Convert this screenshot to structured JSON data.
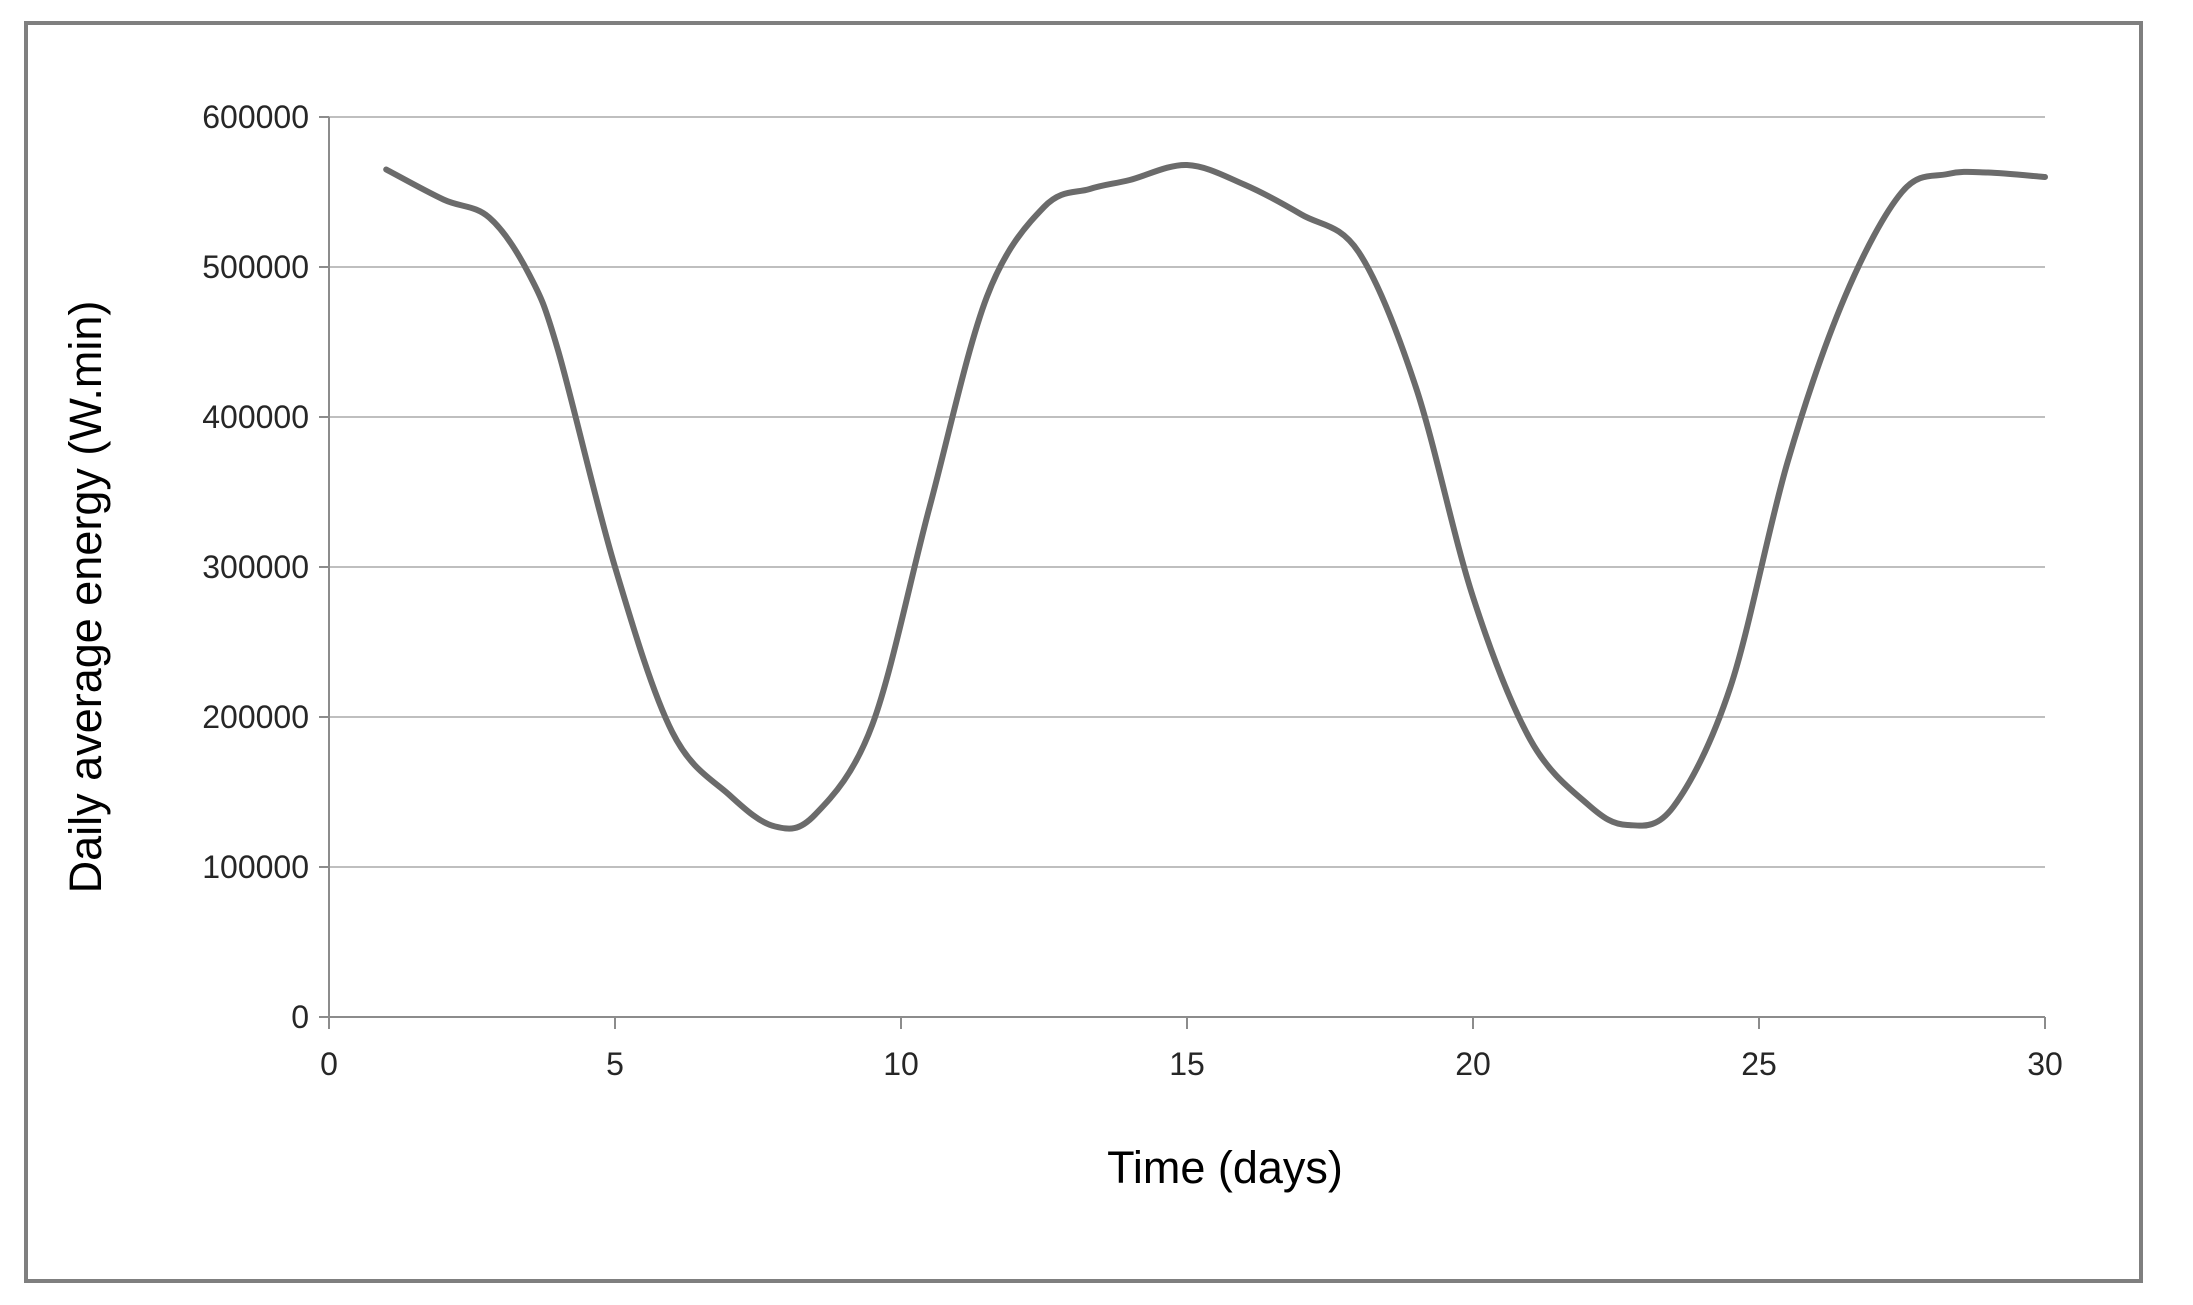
{
  "chart_data": {
    "type": "line",
    "title": "",
    "xlabel": "Time (days)",
    "ylabel": "Daily average energy (W.min)",
    "xlim": [
      0,
      30
    ],
    "ylim": [
      0,
      600000
    ],
    "x_ticks": [
      0,
      5,
      10,
      15,
      20,
      25,
      30
    ],
    "y_ticks": [
      0,
      100000,
      200000,
      300000,
      400000,
      500000,
      600000
    ],
    "grid": "horizontal",
    "legend": "none",
    "series": [
      {
        "color": "#6b6b6b",
        "x": [
          1,
          2,
          2.8,
          3.5,
          4,
          5,
          6,
          7,
          7.8,
          8.5,
          9.5,
          10.5,
          11.5,
          12.5,
          13.3,
          14,
          15,
          16,
          17,
          18,
          19,
          20,
          21,
          22,
          22.7,
          23.5,
          24.5,
          25.5,
          26.5,
          27.5,
          28.3,
          29,
          30
        ],
        "y": [
          565000,
          545000,
          533000,
          495000,
          445000,
          300000,
          190000,
          148000,
          127000,
          135000,
          195000,
          340000,
          480000,
          540000,
          552000,
          558000,
          568000,
          555000,
          535000,
          510000,
          420000,
          280000,
          185000,
          142000,
          128000,
          140000,
          220000,
          370000,
          480000,
          550000,
          562000,
          563000,
          560000
        ]
      }
    ]
  }
}
